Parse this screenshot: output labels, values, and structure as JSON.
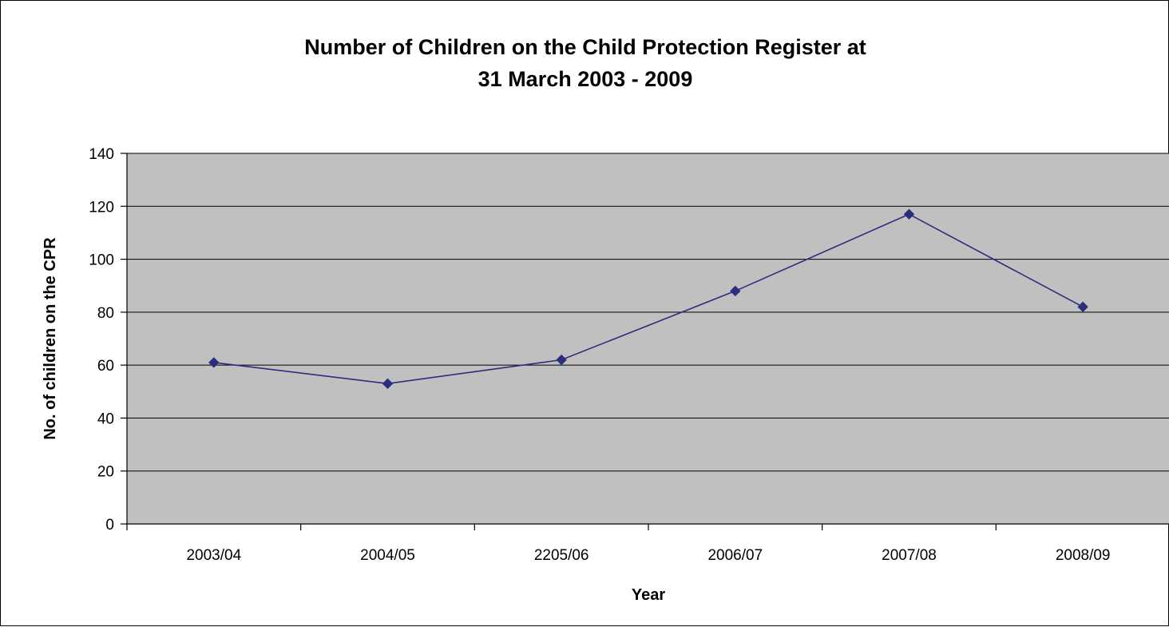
{
  "chart_data": {
    "type": "line",
    "title_lines": [
      "Number of Children on the Child Protection Register at",
      "31 March 2003 - 2009"
    ],
    "xlabel": "Year",
    "ylabel": "No. of children on the CPR",
    "categories": [
      "2003/04",
      "2004/05",
      "2205/06",
      "2006/07",
      "2007/08",
      "2008/09"
    ],
    "series": [
      {
        "values": [
          61,
          53,
          62,
          88,
          117,
          82
        ],
        "color": "#2B2E7E",
        "marker": "diamond"
      }
    ],
    "ylim": [
      0,
      140
    ],
    "yticks": [
      0,
      20,
      40,
      60,
      80,
      100,
      120,
      140
    ],
    "grid": "horizontal",
    "plot_background": "#C0C0C0",
    "legend": "none"
  }
}
